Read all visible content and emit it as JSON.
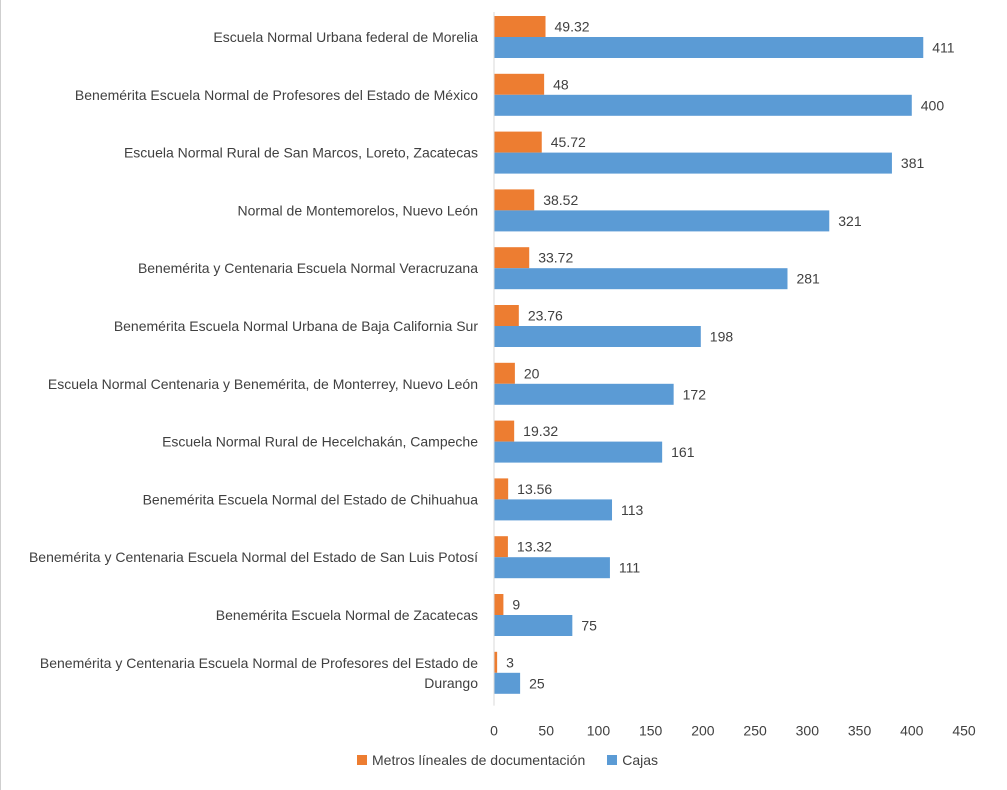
{
  "chart_data": {
    "type": "bar",
    "orientation": "horizontal",
    "categories": [
      [
        "Escuela Normal Urbana federal de Morelia"
      ],
      [
        "Benemérita Escuela Normal de Profesores del Estado de México"
      ],
      [
        "Escuela Normal Rural de San Marcos, Loreto, Zacatecas"
      ],
      [
        "Normal de Montemorelos, Nuevo León"
      ],
      [
        "Benemérita y Centenaria Escuela Normal Veracruzana"
      ],
      [
        "Benemérita Escuela Normal Urbana de Baja California Sur"
      ],
      [
        "Escuela Normal Centenaria y Benemérita, de Monterrey, Nuevo León"
      ],
      [
        "Escuela Normal Rural de Hecelchakán, Campeche"
      ],
      [
        "Benemérita Escuela Normal del Estado de Chihuahua"
      ],
      [
        "Benemérita y Centenaria Escuela Normal del Estado de San Luis Potosí"
      ],
      [
        "Benemérita Escuela Normal de Zacatecas"
      ],
      [
        "Benemérita y Centenaria Escuela Normal de Profesores del Estado de",
        "Durango"
      ]
    ],
    "series": [
      {
        "name": "Metros líneales de documentación",
        "color": "#ED7D31",
        "values": [
          49.32,
          48,
          45.72,
          38.52,
          33.72,
          23.76,
          20,
          19.32,
          13.56,
          13.32,
          9,
          3
        ],
        "labels": [
          "49.32",
          "48",
          "45.72",
          "38.52",
          "33.72",
          "23.76",
          "20",
          "19.32",
          "13.56",
          "13.32",
          "9",
          "3"
        ]
      },
      {
        "name": "Cajas",
        "color": "#5B9BD5",
        "values": [
          411,
          400,
          381,
          321,
          281,
          198,
          172,
          161,
          113,
          111,
          75,
          25
        ],
        "labels": [
          "411",
          "400",
          "381",
          "321",
          "281",
          "198",
          "172",
          "161",
          "113",
          "111",
          "75",
          "25"
        ]
      }
    ],
    "xlim": [
      0,
      450
    ],
    "xticks": [
      "0",
      "50",
      "100",
      "150",
      "200",
      "250",
      "300",
      "350",
      "400",
      "450"
    ],
    "grid": false,
    "legend_position": "bottom"
  }
}
